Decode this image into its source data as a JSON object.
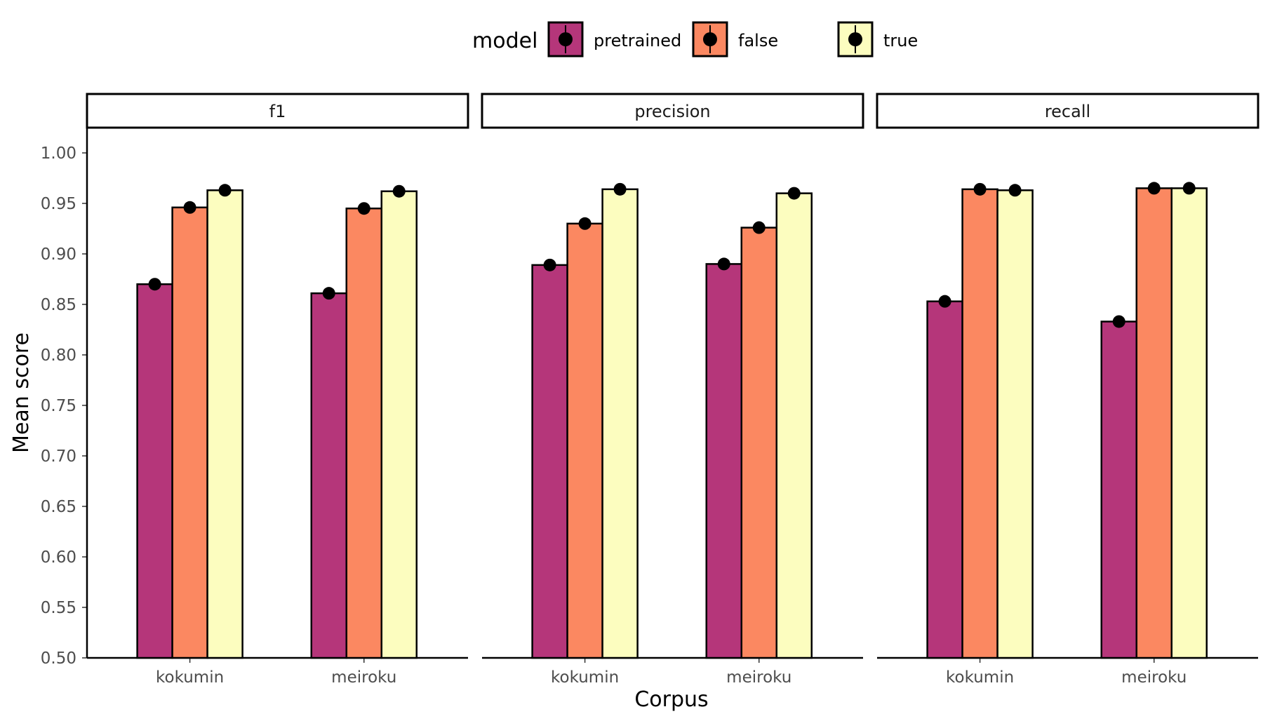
{
  "chart_data": {
    "type": "bar",
    "facets": [
      "f1",
      "precision",
      "recall"
    ],
    "categories": [
      "kokumin",
      "meiroku"
    ],
    "series": [
      {
        "name": "pretrained",
        "color": "#B5367A",
        "values": {
          "f1": [
            0.87,
            0.861
          ],
          "precision": [
            0.889,
            0.89
          ],
          "recall": [
            0.853,
            0.833
          ]
        }
      },
      {
        "name": "false",
        "color": "#FB8861",
        "values": {
          "f1": [
            0.946,
            0.945
          ],
          "precision": [
            0.93,
            0.926
          ],
          "recall": [
            0.964,
            0.965
          ]
        }
      },
      {
        "name": "true",
        "color": "#FCFDBF",
        "values": {
          "f1": [
            0.963,
            0.962
          ],
          "precision": [
            0.964,
            0.96
          ],
          "recall": [
            0.963,
            0.965
          ]
        }
      }
    ],
    "legend_title": "model",
    "legend_position": "top",
    "xlabel": "Corpus",
    "ylabel": "Mean score",
    "ylim": [
      0.5,
      1.025
    ],
    "yticks": [
      "0.50",
      "0.55",
      "0.60",
      "0.65",
      "0.70",
      "0.75",
      "0.80",
      "0.85",
      "0.90",
      "0.95",
      "1.00"
    ],
    "grid": false
  }
}
